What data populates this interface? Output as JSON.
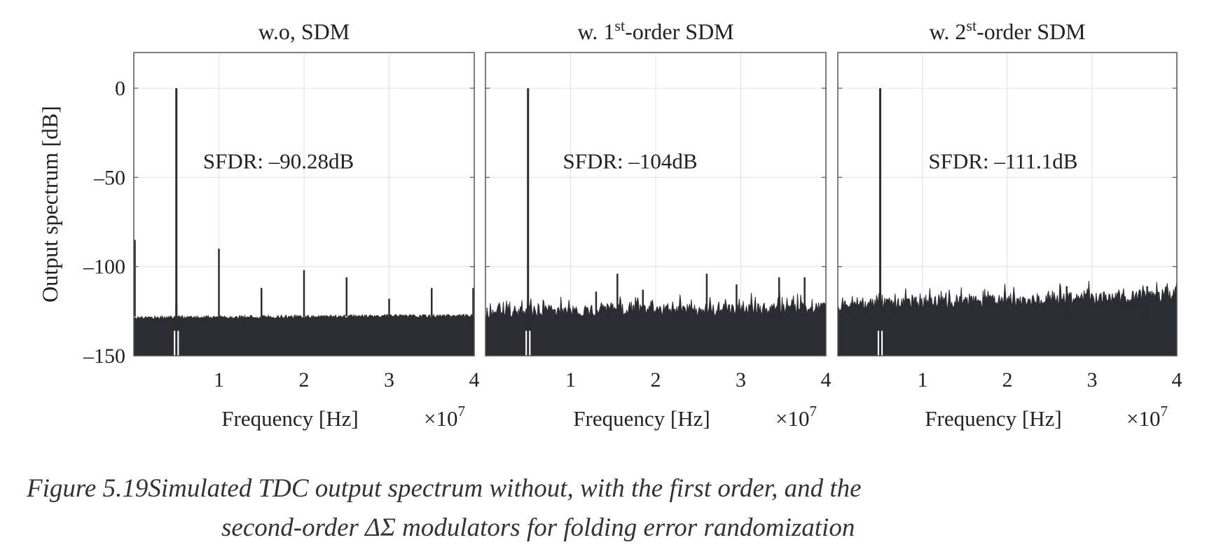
{
  "chart_data": [
    {
      "type": "line",
      "title": {
        "pre": "w.o, SDM",
        "sup": "",
        "post": ""
      },
      "xlabel": "Frequency [Hz]",
      "x_multiplier": {
        "base": "×10",
        "exp": "7"
      },
      "ylabel": "Output spectrum [dB]",
      "xlim": [
        0,
        4
      ],
      "ylim": [
        -150,
        20
      ],
      "xticks": [
        1,
        2,
        3,
        4
      ],
      "xtick_labels": [
        "1",
        "2",
        "3",
        "4"
      ],
      "yticks": [
        0,
        -50,
        -100,
        -150
      ],
      "ytick_labels": [
        "0",
        "–50",
        "–100",
        "–150"
      ],
      "grid": true,
      "annotation": "SFDR: –90.28dB",
      "noise_floor_db": [
        -129,
        -128
      ],
      "noise_jitter_db": 2,
      "spurs": [
        {
          "f": 0.0,
          "db": -85
        },
        {
          "f": 0.5,
          "db": 0
        },
        {
          "f": 1.0,
          "db": -90
        },
        {
          "f": 1.5,
          "db": -112
        },
        {
          "f": 2.0,
          "db": -102
        },
        {
          "f": 2.5,
          "db": -106
        },
        {
          "f": 3.0,
          "db": -118
        },
        {
          "f": 3.5,
          "db": -112
        },
        {
          "f": 4.0,
          "db": -112
        }
      ]
    },
    {
      "type": "line",
      "title": {
        "pre": "w. 1",
        "sup": "st",
        "post": "-order SDM"
      },
      "xlabel": "Frequency [Hz]",
      "x_multiplier": {
        "base": "×10",
        "exp": "7"
      },
      "xlim": [
        0,
        4
      ],
      "ylim": [
        -150,
        20
      ],
      "xticks": [
        1,
        2,
        3,
        4
      ],
      "xtick_labels": [
        "1",
        "2",
        "3",
        "4"
      ],
      "yticks": [
        0,
        -50,
        -100,
        -150
      ],
      "grid": true,
      "annotation": "SFDR: –104dB",
      "noise_floor_db": [
        -127,
        -125
      ],
      "noise_jitter_db": 7,
      "spurs": [
        {
          "f": 0.5,
          "db": 0
        },
        {
          "f": 1.3,
          "db": -114
        },
        {
          "f": 1.55,
          "db": -104
        },
        {
          "f": 1.85,
          "db": -113
        },
        {
          "f": 2.6,
          "db": -104
        },
        {
          "f": 2.95,
          "db": -110
        },
        {
          "f": 3.45,
          "db": -106
        },
        {
          "f": 3.75,
          "db": -106
        }
      ]
    },
    {
      "type": "line",
      "title": {
        "pre": "w. 2",
        "sup": "st",
        "post": "-order SDM"
      },
      "xlabel": "Frequency [Hz]",
      "x_multiplier": {
        "base": "×10",
        "exp": "7"
      },
      "xlim": [
        0,
        4
      ],
      "ylim": [
        -150,
        20
      ],
      "xticks": [
        1,
        2,
        3,
        4
      ],
      "xtick_labels": [
        "1",
        "2",
        "3",
        "4"
      ],
      "yticks": [
        0,
        -50,
        -100,
        -150
      ],
      "grid": true,
      "annotation": "SFDR: –111.1dB",
      "noise_floor_db": [
        -123,
        -118
      ],
      "noise_jitter_db": 7,
      "spurs": [
        {
          "f": 0.5,
          "db": 0
        },
        {
          "f": 2.7,
          "db": -111
        },
        {
          "f": 3.65,
          "db": -111
        }
      ]
    }
  ],
  "caption": {
    "label": "Figure 5.19",
    "line1": "Simulated TDC output spectrum without, with the first order, and the",
    "line2": "second-order ΔΣ modulators for folding error randomization"
  }
}
